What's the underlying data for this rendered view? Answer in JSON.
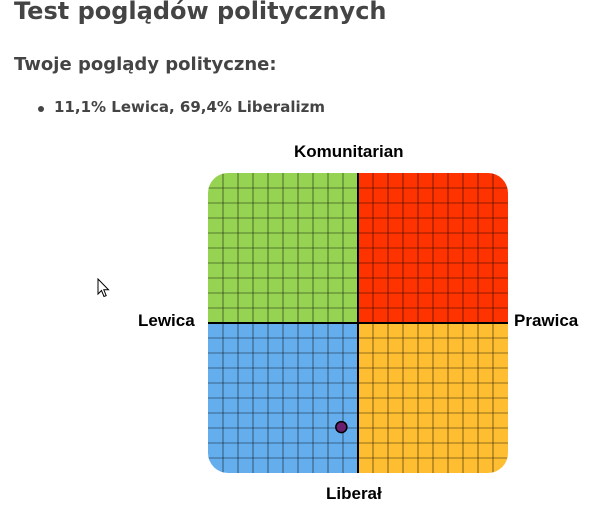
{
  "page": {
    "title": "Test poglądów politycznych",
    "subtitle": "Twoje poglądy polityczne:",
    "results": [
      "11,1% Lewica, 69,4% Liberalizm"
    ]
  },
  "compass": {
    "labels": {
      "top": "Komunitarian",
      "bottom": "Liberał",
      "left": "Lewica",
      "right": "Prawica"
    },
    "quadrant_colors": {
      "top_left": "#96d352",
      "top_right": "#ff3300",
      "bottom_left": "#65aeee",
      "bottom_right": "#ffbe31"
    },
    "grid_divisions_per_axis": 20,
    "marker": {
      "lewica_percent": 11.1,
      "liberalizm_percent": 69.4,
      "color": "#6a1f6e"
    }
  }
}
